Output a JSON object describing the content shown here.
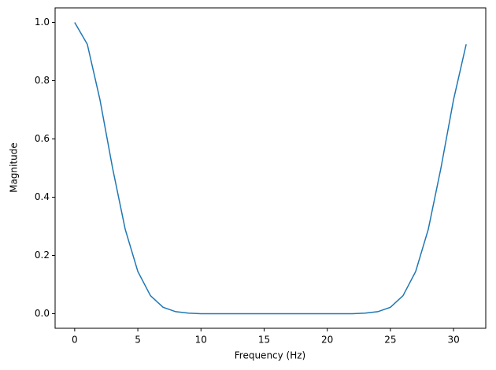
{
  "chart_data": {
    "type": "line",
    "xlabel": "Frequency (Hz)",
    "ylabel": "Magnitude",
    "x": [
      0,
      1,
      2,
      3,
      4,
      5,
      6,
      7,
      8,
      9,
      10,
      11,
      12,
      13,
      14,
      15,
      16,
      17,
      18,
      19,
      20,
      21,
      22,
      23,
      24,
      25,
      26,
      27,
      28,
      29,
      30,
      31
    ],
    "series": [
      {
        "color": "#1f77b4",
        "values": [
          1.0,
          0.925,
          0.735,
          0.5,
          0.29,
          0.145,
          0.062,
          0.022,
          0.007,
          0.002,
          0.0,
          0.0,
          0.0,
          0.0,
          0.0,
          0.0,
          0.0,
          0.0,
          0.0,
          0.0,
          0.0,
          0.0,
          0.0,
          0.002,
          0.007,
          0.022,
          0.062,
          0.145,
          0.29,
          0.5,
          0.735,
          0.925
        ]
      }
    ],
    "xlim": [
      -1.55,
      32.55
    ],
    "xticks": [
      0,
      5,
      10,
      15,
      20,
      25,
      30
    ],
    "ylim": [
      -0.05,
      1.05
    ],
    "yticks": [
      {
        "value": 0,
        "label": "0.0"
      },
      {
        "value": 0.2,
        "label": "0.2"
      },
      {
        "value": 0.4,
        "label": "0.4"
      },
      {
        "value": 0.6,
        "label": "0.6"
      },
      {
        "value": 0.8,
        "label": "0.8"
      },
      {
        "value": 1,
        "label": "1.0"
      }
    ]
  }
}
